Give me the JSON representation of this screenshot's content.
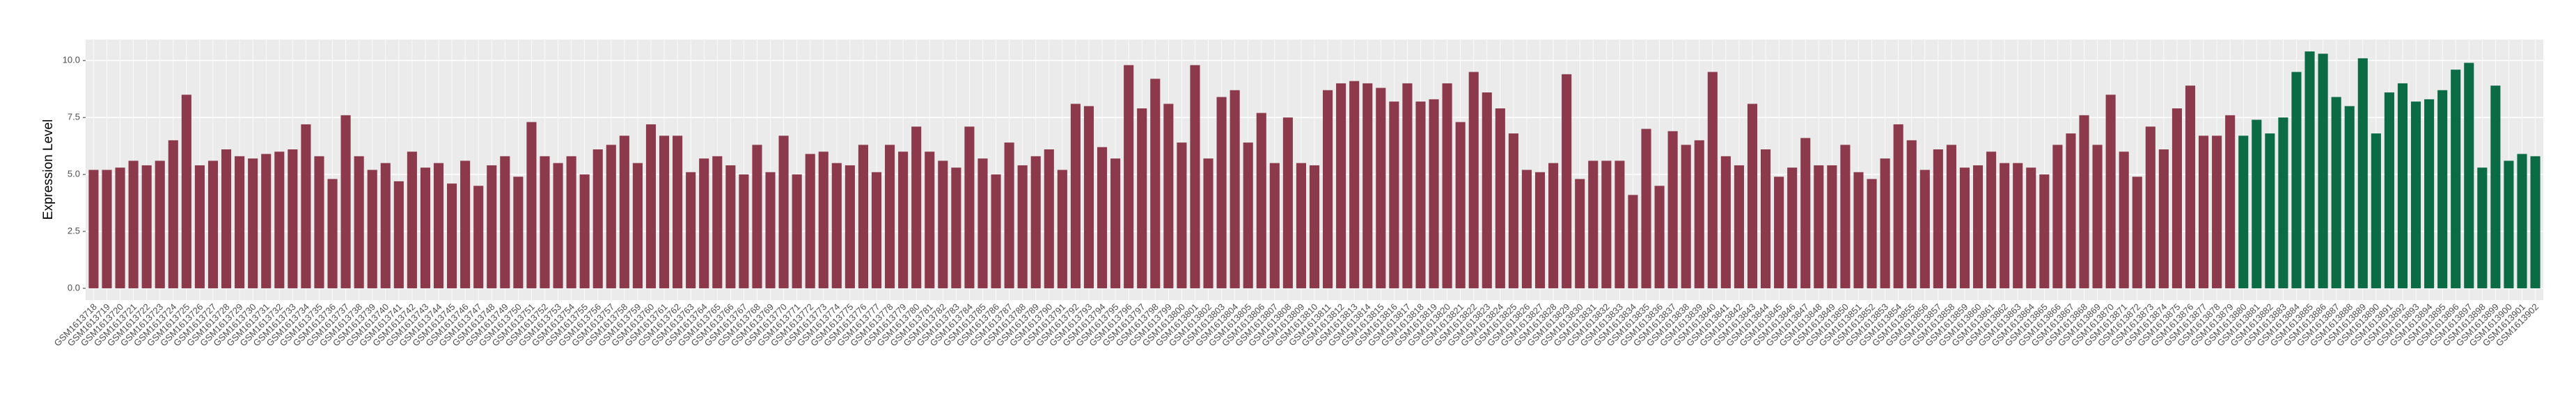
{
  "chart_data": {
    "type": "bar",
    "y_label": "Expression Level",
    "ylim": [
      -0.52,
      10.92
    ],
    "yticks": [
      {
        "value": 0,
        "label": "0.0"
      },
      2.5,
      {
        "value": 5,
        "label": "5.0"
      },
      7.5,
      {
        "value": 10,
        "label": "10.0"
      }
    ],
    "grid": true,
    "series": [
      {
        "color": "#8c3a4b",
        "categories": [
          "GSM1613718",
          "GSM1613719",
          "GSM1613720",
          "GSM1613721",
          "GSM1613722",
          "GSM1613723",
          "GSM1613724",
          "GSM1613725",
          "GSM1613726",
          "GSM1613727",
          "GSM1613728",
          "GSM1613729",
          "GSM1613730",
          "GSM1613731",
          "GSM1613732",
          "GSM1613733",
          "GSM1613734",
          "GSM1613735",
          "GSM1613736",
          "GSM1613737",
          "GSM1613738",
          "GSM1613739",
          "GSM1613740",
          "GSM1613741",
          "GSM1613742",
          "GSM1613743",
          "GSM1613744",
          "GSM1613745",
          "GSM1613746",
          "GSM1613747",
          "GSM1613748",
          "GSM1613749",
          "GSM1613750",
          "GSM1613751",
          "GSM1613752",
          "GSM1613753",
          "GSM1613754",
          "GSM1613755",
          "GSM1613756",
          "GSM1613757",
          "GSM1613758",
          "GSM1613759",
          "GSM1613760",
          "GSM1613761",
          "GSM1613762",
          "GSM1613763",
          "GSM1613764",
          "GSM1613765",
          "GSM1613766",
          "GSM1613767",
          "GSM1613768",
          "GSM1613769",
          "GSM1613770",
          "GSM1613771",
          "GSM1613772",
          "GSM1613773",
          "GSM1613774",
          "GSM1613775",
          "GSM1613776",
          "GSM1613777",
          "GSM1613778",
          "GSM1613779",
          "GSM1613780",
          "GSM1613781",
          "GSM1613782",
          "GSM1613783",
          "GSM1613784",
          "GSM1613785",
          "GSM1613786",
          "GSM1613787",
          "GSM1613788",
          "GSM1613789",
          "GSM1613790",
          "GSM1613791",
          "GSM1613792",
          "GSM1613793",
          "GSM1613794",
          "GSM1613795",
          "GSM1613796",
          "GSM1613797",
          "GSM1613798",
          "GSM1613799",
          "GSM1613800",
          "GSM1613801",
          "GSM1613802",
          "GSM1613803",
          "GSM1613804",
          "GSM1613805",
          "GSM1613806",
          "GSM1613807",
          "GSM1613808",
          "GSM1613809",
          "GSM1613810",
          "GSM1613811",
          "GSM1613812",
          "GSM1613813",
          "GSM1613814",
          "GSM1613815",
          "GSM1613816",
          "GSM1613817",
          "GSM1613818",
          "GSM1613819",
          "GSM1613820",
          "GSM1613821",
          "GSM1613822",
          "GSM1613823",
          "GSM1613824",
          "GSM1613825",
          "GSM1613826",
          "GSM1613827",
          "GSM1613828",
          "GSM1613829",
          "GSM1613830",
          "GSM1613831",
          "GSM1613832",
          "GSM1613833",
          "GSM1613834",
          "GSM1613835",
          "GSM1613836",
          "GSM1613837",
          "GSM1613838",
          "GSM1613839",
          "GSM1613840",
          "GSM1613841",
          "GSM1613842",
          "GSM1613843",
          "GSM1613844",
          "GSM1613845",
          "GSM1613846",
          "GSM1613847",
          "GSM1613848",
          "GSM1613849",
          "GSM1613850",
          "GSM1613851",
          "GSM1613852",
          "GSM1613853",
          "GSM1613854",
          "GSM1613855",
          "GSM1613856",
          "GSM1613857",
          "GSM1613858",
          "GSM1613859",
          "GSM1613860",
          "GSM1613861",
          "GSM1613862",
          "GSM1613863",
          "GSM1613864",
          "GSM1613865",
          "GSM1613866",
          "GSM1613867",
          "GSM1613868",
          "GSM1613869",
          "GSM1613870",
          "GSM1613871",
          "GSM1613872",
          "GSM1613873",
          "GSM1613874",
          "GSM1613875",
          "GSM1613876",
          "GSM1613877",
          "GSM1613878",
          "GSM1613879"
        ],
        "values": [
          5.2,
          5.2,
          5.3,
          5.6,
          5.4,
          5.6,
          6.5,
          8.5,
          5.4,
          5.6,
          6.1,
          5.8,
          5.7,
          5.9,
          6.0,
          6.1,
          7.2,
          5.8,
          4.8,
          7.6,
          5.8,
          5.2,
          5.5,
          4.7,
          6.0,
          5.3,
          5.5,
          4.6,
          5.6,
          4.5,
          5.4,
          5.8,
          4.9,
          7.3,
          5.8,
          5.5,
          5.8,
          5.0,
          6.1,
          6.3,
          6.7,
          5.5,
          7.2,
          6.7,
          6.7,
          5.1,
          5.7,
          5.8,
          5.4,
          5.0,
          6.3,
          5.1,
          6.7,
          5.0,
          5.9,
          6.0,
          5.5,
          5.4,
          6.3,
          5.1,
          6.3,
          6.0,
          7.1,
          6.0,
          5.6,
          5.3,
          7.1,
          5.7,
          5.0,
          6.4,
          5.4,
          5.8,
          6.1,
          5.2,
          8.1,
          8.0,
          6.2,
          5.7,
          9.8,
          7.9,
          9.2,
          8.1,
          6.4,
          9.8,
          5.7,
          8.4,
          8.7,
          6.4,
          7.7,
          5.5,
          7.5,
          5.5,
          5.4,
          8.7,
          9.0,
          9.1,
          9.0,
          8.8,
          8.2,
          9.0,
          8.2,
          8.3,
          9.0,
          7.3,
          9.5,
          8.6,
          7.9,
          6.8,
          5.2,
          5.1,
          5.5,
          9.4,
          4.8,
          5.6,
          5.6,
          5.6,
          4.1,
          7.0,
          4.5,
          6.9,
          6.3,
          6.5,
          9.5,
          5.8,
          5.4,
          8.1,
          6.1,
          4.9,
          5.3,
          6.6,
          5.4,
          5.4,
          6.3,
          5.1,
          4.8,
          5.7,
          7.2,
          6.5,
          5.2,
          6.1,
          6.3,
          5.3,
          5.4,
          6.0,
          5.5,
          5.5,
          5.3,
          5.0,
          6.3,
          6.8,
          7.6,
          6.3,
          8.5,
          6.0,
          4.9,
          7.1,
          6.1,
          7.9,
          8.9,
          6.7,
          6.7,
          7.6
        ]
      },
      {
        "color": "#0b6b45",
        "categories": [
          "GSM1613880",
          "GSM1613881",
          "GSM1613882",
          "GSM1613883",
          "GSM1613884",
          "GSM1613885",
          "GSM1613886",
          "GSM1613887",
          "GSM1613888",
          "GSM1613889",
          "GSM1613890",
          "GSM1613891",
          "GSM1613892",
          "GSM1613893",
          "GSM1613894",
          "GSM1613895",
          "GSM1613896",
          "GSM1613897",
          "GSM1613898",
          "GSM1613899",
          "GSM1613900",
          "GSM1613901",
          "GSM1613902"
        ],
        "values": [
          6.7,
          7.4,
          6.8,
          7.5,
          9.5,
          10.4,
          10.3,
          8.4,
          8.0,
          10.1,
          6.8,
          8.6,
          9.0,
          8.2,
          8.3,
          8.7,
          9.6,
          9.9,
          5.3,
          8.9,
          5.6,
          5.9,
          5.8
        ]
      }
    ]
  }
}
